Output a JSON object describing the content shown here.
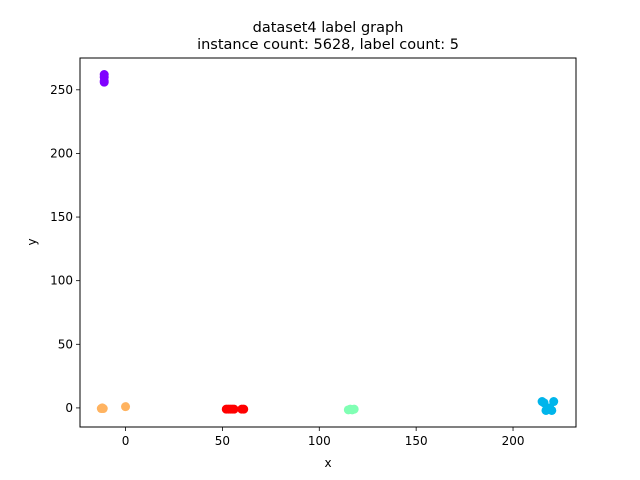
{
  "chart_data": {
    "type": "scatter",
    "title": "dataset4 label graph",
    "subtitle": "instance count: 5628, label count: 5",
    "xlabel": "x",
    "ylabel": "y",
    "xlim": [
      -23.5,
      232.5
    ],
    "ylim": [
      -15,
      275
    ],
    "xticks": [
      0,
      50,
      100,
      150,
      200
    ],
    "yticks": [
      0,
      50,
      100,
      150,
      200,
      250
    ],
    "grid": false,
    "legend": "none",
    "series": [
      {
        "color": "#8000ff",
        "points": [
          [
            -11,
            262
          ],
          [
            -11,
            260
          ],
          [
            -11,
            257
          ],
          [
            -11,
            256
          ]
        ]
      },
      {
        "color": "#ffb360",
        "points": [
          [
            -12.5,
            -0.5
          ],
          [
            -12,
            0
          ],
          [
            -11.5,
            -0.5
          ],
          [
            0,
            1
          ]
        ]
      },
      {
        "color": "#ff0000",
        "points": [
          [
            52,
            -1
          ],
          [
            53,
            -1
          ],
          [
            54,
            -1
          ],
          [
            55,
            -1
          ],
          [
            56,
            -1
          ],
          [
            60,
            -1
          ],
          [
            61,
            -1
          ]
        ]
      },
      {
        "color": "#80ffb4",
        "points": [
          [
            115,
            -1.5
          ],
          [
            116,
            -1
          ],
          [
            117,
            -1.5
          ],
          [
            118,
            -1
          ]
        ]
      },
      {
        "color": "#00b5eb",
        "points": [
          [
            215,
            5
          ],
          [
            216,
            4
          ],
          [
            221,
            5
          ],
          [
            217,
            -2
          ],
          [
            218,
            -1
          ],
          [
            220,
            -2
          ],
          [
            219,
            0
          ]
        ]
      }
    ]
  }
}
